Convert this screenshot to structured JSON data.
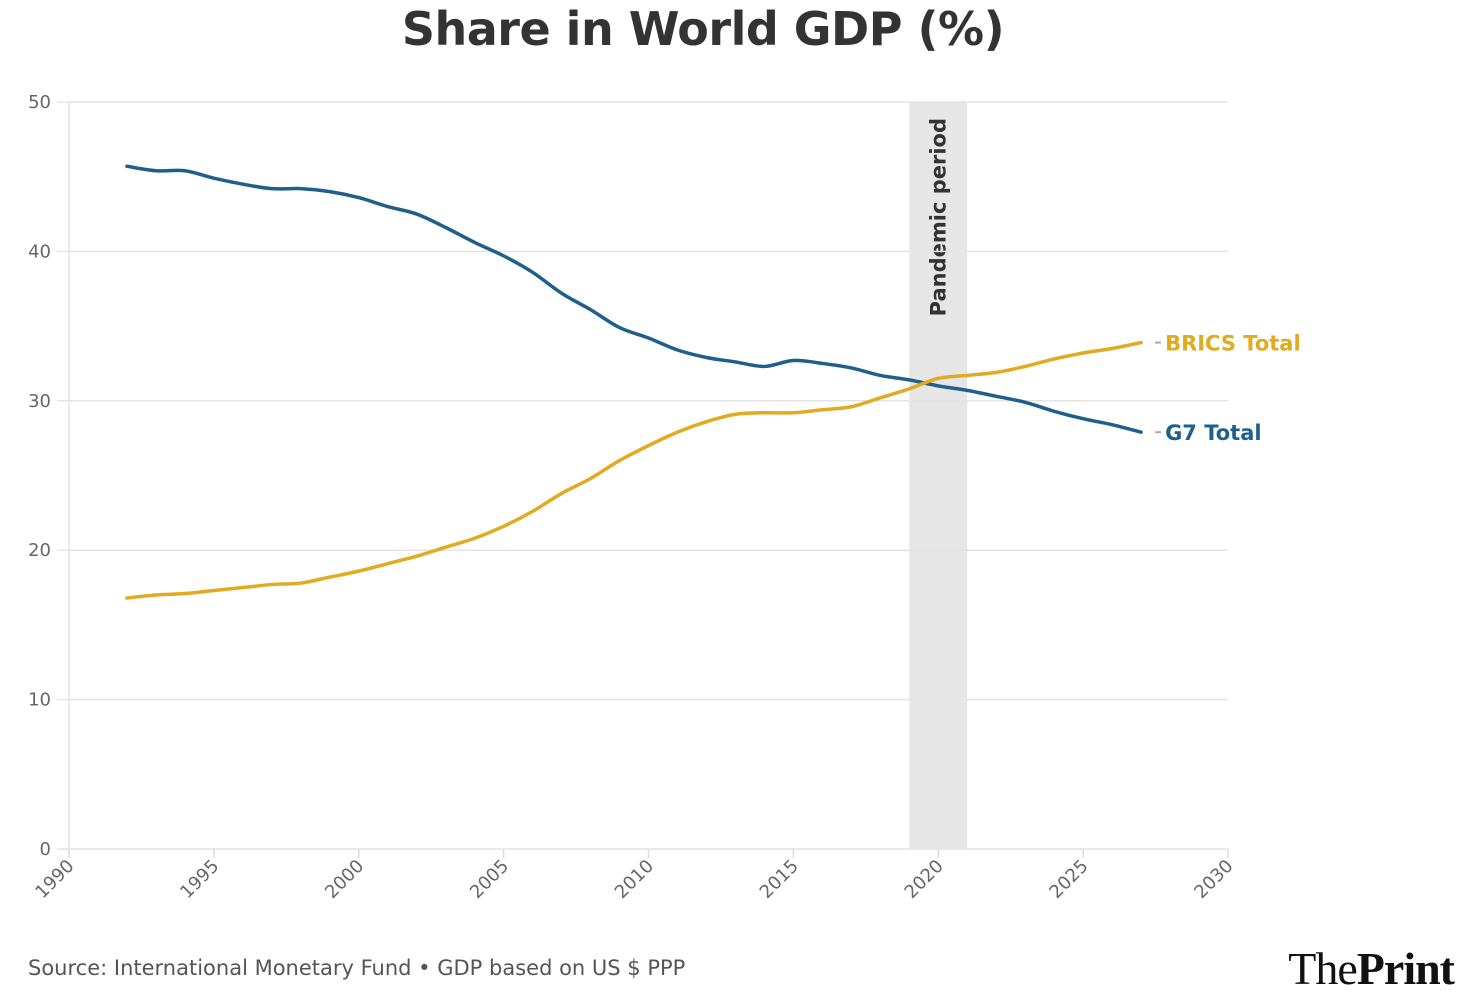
{
  "chart_data": {
    "type": "line",
    "title": "Share in World GDP (%)",
    "xlabel": "",
    "ylabel": "",
    "xlim": [
      1990,
      2030
    ],
    "ylim": [
      0,
      50
    ],
    "x_ticks": [
      "1990",
      "1995",
      "2000",
      "2005",
      "2010",
      "2015",
      "2020",
      "2025",
      "2030"
    ],
    "y_ticks": [
      "0",
      "10",
      "20",
      "30",
      "40",
      "50"
    ],
    "grid": true,
    "legend": "direct labels at line ends (right)",
    "x": [
      1992,
      1993,
      1994,
      1995,
      1996,
      1997,
      1998,
      1999,
      2000,
      2001,
      2002,
      2003,
      2004,
      2005,
      2006,
      2007,
      2008,
      2009,
      2010,
      2011,
      2012,
      2013,
      2014,
      2015,
      2016,
      2017,
      2018,
      2019,
      2020,
      2021,
      2022,
      2023,
      2024,
      2025,
      2026,
      2027
    ],
    "series": [
      {
        "name": "G7 Total",
        "color": "#1f5f8b",
        "values": [
          45.7,
          45.4,
          45.4,
          44.9,
          44.5,
          44.2,
          44.2,
          44.0,
          43.6,
          43.0,
          42.5,
          41.6,
          40.6,
          39.7,
          38.6,
          37.2,
          36.1,
          34.9,
          34.2,
          33.4,
          32.9,
          32.6,
          32.3,
          32.7,
          32.5,
          32.2,
          31.7,
          31.4,
          31.0,
          30.7,
          30.3,
          29.9,
          29.3,
          28.8,
          28.4,
          27.9
        ]
      },
      {
        "name": "BRICS Total",
        "color": "#e2aa1f",
        "values": [
          16.8,
          17.0,
          17.1,
          17.3,
          17.5,
          17.7,
          17.8,
          18.2,
          18.6,
          19.1,
          19.6,
          20.2,
          20.8,
          21.6,
          22.6,
          23.8,
          24.8,
          26.0,
          27.0,
          27.9,
          28.6,
          29.1,
          29.2,
          29.2,
          29.4,
          29.6,
          30.2,
          30.8,
          31.5,
          31.7,
          31.9,
          32.3,
          32.8,
          33.2,
          33.5,
          33.9
        ]
      }
    ],
    "annotations": [
      {
        "type": "shaded-band",
        "label": "Pandemic period",
        "x_start": 2019,
        "x_end": 2021,
        "color": "#e6e6e6"
      }
    ]
  },
  "footer": {
    "source": "Source: International Monetary Fund • GDP based on US $ PPP",
    "brand_light": "The",
    "brand_bold": "Print"
  }
}
